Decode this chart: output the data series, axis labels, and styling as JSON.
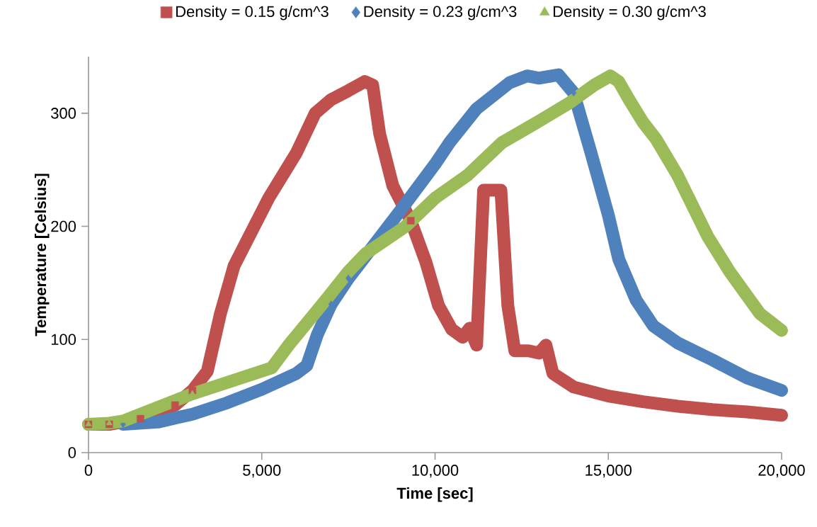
{
  "chart_data": {
    "type": "line",
    "xlabel": "Time [sec]",
    "ylabel": "Temperature [Celsius]",
    "xlim": [
      0,
      20000
    ],
    "ylim": [
      0,
      350
    ],
    "xticks": [
      0,
      {
        "value": 5000,
        "label": "5,000"
      },
      {
        "value": 10000,
        "label": "10,000"
      },
      {
        "value": 15000,
        "label": "15,000"
      },
      {
        "value": 20000,
        "label": "20,000"
      }
    ],
    "yticks": [
      0,
      100,
      200,
      300
    ],
    "grid": false,
    "legend": "top",
    "line_style": "solid",
    "series": [
      {
        "name": "Density = 0.15 g/cm^3",
        "color": "#c0504d",
        "marker": "square",
        "x": [
          0,
          600,
          1500,
          2500,
          3000,
          3430,
          3800,
          4200,
          4700,
          5200,
          6000,
          6540,
          7000,
          7500,
          7970,
          8200,
          8400,
          8780,
          9300,
          9740,
          10100,
          10480,
          10800,
          11000,
          11200,
          11400,
          11700,
          11900,
          12100,
          12300,
          12700,
          13000,
          13200,
          13400,
          14000,
          15000,
          16000,
          17000,
          18000,
          19000,
          20000
        ],
        "values": [
          25,
          25,
          30,
          42,
          55,
          72,
          122,
          165,
          195,
          225,
          265,
          300,
          312,
          320,
          328,
          325,
          282,
          236,
          205,
          168,
          130,
          109,
          102,
          110,
          95,
          232,
          232,
          232,
          130,
          90,
          90,
          88,
          95,
          70,
          58,
          50,
          45,
          41,
          38,
          36,
          33
        ]
      },
      {
        "name": "Density = 0.23 g/cm^3",
        "color": "#4f81bd",
        "marker": "diamond",
        "x": [
          1000,
          2000,
          3000,
          4000,
          5000,
          6000,
          6300,
          6600,
          7000,
          7500,
          9000,
          10000,
          10440,
          11200,
          12150,
          12660,
          13000,
          13560,
          14000,
          14500,
          15000,
          15300,
          15800,
          16300,
          17000,
          18000,
          19000,
          20000
        ],
        "values": [
          25,
          27,
          34,
          44,
          56,
          70,
          77,
          104,
          131,
          154,
          214,
          255,
          275,
          304,
          327,
          333,
          331,
          334,
          318,
          265,
          210,
          171,
          135,
          112,
          97,
          82,
          66,
          55
        ]
      },
      {
        "name": "Density = 0.30 g/cm^3",
        "color": "#9bbb59",
        "marker": "triangle",
        "x": [
          0,
          600,
          1000,
          2000,
          3000,
          4000,
          5290,
          5800,
          6500,
          6930,
          7500,
          8000,
          9150,
          10000,
          10930,
          11930,
          13000,
          13870,
          14600,
          15060,
          15300,
          15600,
          16000,
          16380,
          17000,
          17870,
          18500,
          19370,
          20000
        ],
        "values": [
          25,
          26,
          28,
          40,
          52,
          62,
          75,
          96,
          122,
          138,
          160,
          176,
          200,
          225,
          245,
          274,
          293,
          309,
          325,
          333,
          328,
          312,
          292,
          277,
          245,
          191,
          160,
          123,
          108
        ]
      }
    ]
  }
}
